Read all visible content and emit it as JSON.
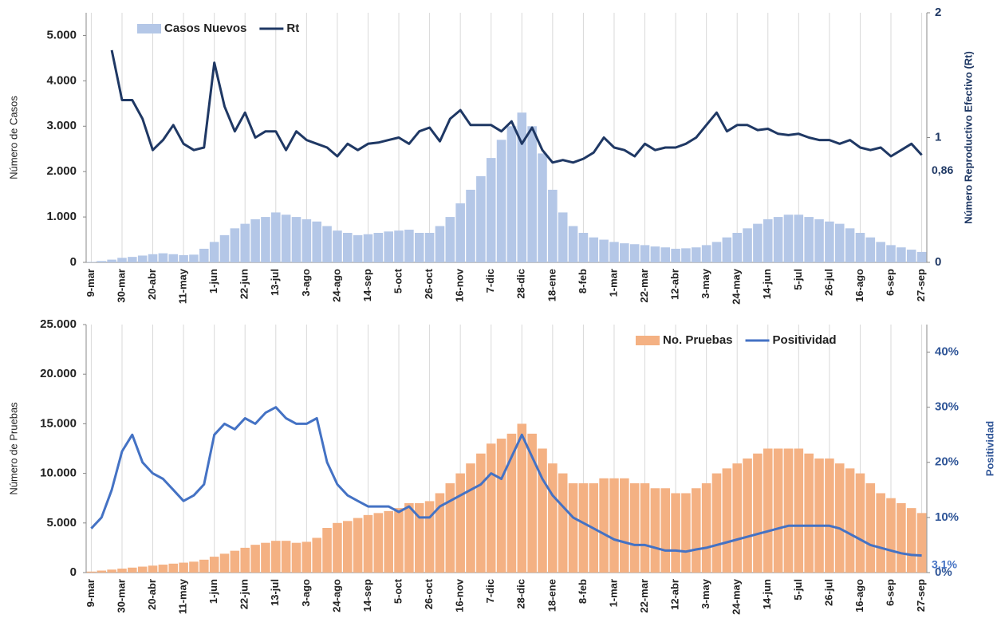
{
  "chart_data": [
    {
      "type": "combo",
      "y_label": "Número de Casos",
      "y2_label": "Número Reproductivo Efectivo (Rt)",
      "legend": "upper left",
      "grid": "x",
      "categories": [
        "9-mar",
        null,
        null,
        "30-mar",
        null,
        null,
        "20-abr",
        null,
        null,
        "11-may",
        null,
        null,
        "1-jun",
        null,
        null,
        "22-jun",
        null,
        null,
        "13-jul",
        null,
        null,
        "3-ago",
        null,
        null,
        "24-ago",
        null,
        null,
        "14-sep",
        null,
        null,
        "5-oct",
        null,
        null,
        "26-oct",
        null,
        null,
        "16-nov",
        null,
        null,
        "7-dic",
        null,
        null,
        "28-dic",
        null,
        null,
        "18-ene",
        null,
        null,
        "8-feb",
        null,
        null,
        "1-mar",
        null,
        null,
        "22-mar",
        null,
        null,
        "12-abr",
        null,
        null,
        "3-may",
        null,
        null,
        "24-may",
        null,
        null,
        "14-jun",
        null,
        null,
        "5-jul",
        null,
        null,
        "26-jul",
        null,
        null,
        "16-ago",
        null,
        null,
        "6-sep",
        null,
        null,
        "27-sep"
      ],
      "ylim": [
        0,
        5500
      ],
      "yticks": [
        0,
        {
          "value": 1000,
          "label": "1.000"
        },
        {
          "value": 2000,
          "label": "2.000"
        },
        {
          "value": 3000,
          "label": "3.000"
        },
        {
          "value": 4000,
          "label": "4.000"
        },
        {
          "value": 5000,
          "label": "5.000"
        }
      ],
      "y2lim": [
        0,
        2
      ],
      "y2ticks": [
        0,
        1,
        2
      ],
      "y2color": "#1f3864",
      "series": [
        {
          "name": "Casos Nuevos",
          "type": "bar",
          "color": "#b4c7e7",
          "values": [
            10,
            30,
            60,
            100,
            120,
            150,
            180,
            200,
            180,
            160,
            170,
            300,
            450,
            600,
            750,
            850,
            950,
            1000,
            1100,
            1050,
            1000,
            950,
            900,
            800,
            700,
            650,
            600,
            620,
            650,
            680,
            700,
            720,
            650,
            650,
            800,
            1000,
            1300,
            1600,
            1900,
            2300,
            2700,
            3000,
            3300,
            3000,
            2400,
            1600,
            1100,
            800,
            650,
            550,
            500,
            450,
            420,
            400,
            380,
            350,
            330,
            300,
            310,
            330,
            380,
            450,
            550,
            650,
            750,
            850,
            950,
            1000,
            1050,
            1050,
            1000,
            950,
            900,
            850,
            750,
            650,
            550,
            450,
            380,
            330,
            280,
            230
          ]
        },
        {
          "name": "Rt",
          "type": "line",
          "axis": "y2",
          "color": "#1f3864",
          "values": [
            null,
            null,
            1.7,
            1.3,
            1.3,
            1.15,
            0.9,
            0.98,
            1.1,
            0.95,
            0.9,
            0.92,
            1.6,
            1.25,
            1.05,
            1.2,
            1.0,
            1.05,
            1.05,
            0.9,
            1.05,
            0.98,
            0.95,
            0.92,
            0.85,
            0.95,
            0.9,
            0.95,
            0.96,
            0.98,
            1.0,
            0.95,
            1.05,
            1.08,
            0.97,
            1.15,
            1.22,
            1.1,
            1.1,
            1.1,
            1.05,
            1.13,
            0.95,
            1.08,
            0.9,
            0.8,
            0.82,
            0.8,
            0.83,
            0.88,
            1.0,
            0.92,
            0.9,
            0.85,
            0.95,
            0.9,
            0.92,
            0.92,
            0.95,
            1.0,
            1.1,
            1.2,
            1.05,
            1.1,
            1.1,
            1.06,
            1.07,
            1.03,
            1.02,
            1.03,
            1.0,
            0.98,
            0.98,
            0.95,
            0.98,
            0.92,
            0.9,
            0.92,
            0.85,
            0.9,
            0.95,
            0.86
          ],
          "value_labels": [
            null,
            null,
            null,
            null,
            null,
            null,
            null,
            null,
            null,
            null,
            null,
            null,
            null,
            null,
            null,
            null,
            null,
            null,
            null,
            null,
            null,
            null,
            null,
            null,
            null,
            null,
            null,
            null,
            null,
            null,
            null,
            null,
            null,
            null,
            null,
            null,
            null,
            null,
            null,
            null,
            null,
            null,
            null,
            null,
            null,
            null,
            null,
            null,
            null,
            null,
            null,
            null,
            null,
            null,
            null,
            null,
            null,
            null,
            null,
            null,
            null,
            null,
            null,
            null,
            null,
            null,
            null,
            null,
            null,
            null,
            null,
            null,
            null,
            null,
            null,
            null,
            null,
            null,
            null,
            null,
            null,
            "0,86"
          ]
        }
      ]
    },
    {
      "type": "combo",
      "y_label": "Número de Pruebas",
      "y2_label": "Positividad",
      "legend": "upper right",
      "grid": "x",
      "categories": [
        "9-mar",
        null,
        null,
        "30-mar",
        null,
        null,
        "20-abr",
        null,
        null,
        "11-may",
        null,
        null,
        "1-jun",
        null,
        null,
        "22-jun",
        null,
        null,
        "13-jul",
        null,
        null,
        "3-ago",
        null,
        null,
        "24-ago",
        null,
        null,
        "14-sep",
        null,
        null,
        "5-oct",
        null,
        null,
        "26-oct",
        null,
        null,
        "16-nov",
        null,
        null,
        "7-dic",
        null,
        null,
        "28-dic",
        null,
        null,
        "18-ene",
        null,
        null,
        "8-feb",
        null,
        null,
        "1-mar",
        null,
        null,
        "22-mar",
        null,
        null,
        "12-abr",
        null,
        null,
        "3-may",
        null,
        null,
        "24-may",
        null,
        null,
        "14-jun",
        null,
        null,
        "5-jul",
        null,
        null,
        "26-jul",
        null,
        null,
        "16-ago",
        null,
        null,
        "6-sep",
        null,
        null,
        "27-sep"
      ],
      "ylim": [
        0,
        25000
      ],
      "yticks": [
        0,
        {
          "value": 5000,
          "label": "5.000"
        },
        {
          "value": 10000,
          "label": "10.000"
        },
        {
          "value": 15000,
          "label": "15.000"
        },
        {
          "value": 20000,
          "label": "20.000"
        },
        {
          "value": 25000,
          "label": "25.000"
        }
      ],
      "y2lim": [
        0,
        45
      ],
      "y2ticks": [
        {
          "value": 0,
          "label": "0%"
        },
        {
          "value": 10,
          "label": "10%"
        },
        {
          "value": 20,
          "label": "20%"
        },
        {
          "value": 30,
          "label": "30%"
        },
        {
          "value": 40,
          "label": "40%"
        }
      ],
      "y2color": "#2f5597",
      "series": [
        {
          "name": "No. Pruebas",
          "type": "bar",
          "color": "#f4b183",
          "values": [
            100,
            200,
            300,
            400,
            500,
            600,
            700,
            800,
            900,
            1000,
            1100,
            1300,
            1600,
            1900,
            2200,
            2500,
            2800,
            3000,
            3200,
            3200,
            3000,
            3100,
            3500,
            4500,
            5000,
            5200,
            5500,
            5800,
            6000,
            6200,
            6500,
            7000,
            7000,
            7200,
            8000,
            9000,
            10000,
            11000,
            12000,
            13000,
            13500,
            14000,
            15000,
            14000,
            12500,
            11000,
            10000,
            9000,
            9000,
            9000,
            9500,
            9500,
            9500,
            9000,
            9000,
            8500,
            8500,
            8000,
            8000,
            8500,
            9000,
            10000,
            10500,
            11000,
            11500,
            12000,
            12500,
            12500,
            12500,
            12500,
            12000,
            11500,
            11500,
            11000,
            10500,
            10000,
            9000,
            8000,
            7500,
            7000,
            6500,
            6000
          ]
        },
        {
          "name": "Positividad",
          "type": "line",
          "axis": "y2",
          "color": "#4472c4",
          "values": [
            8,
            10,
            15,
            22,
            25,
            20,
            18,
            17,
            15,
            13,
            14,
            16,
            25,
            27,
            26,
            28,
            27,
            29,
            30,
            28,
            27,
            27,
            28,
            20,
            16,
            14,
            13,
            12,
            12,
            12,
            11,
            12,
            10,
            10,
            12,
            13,
            14,
            15,
            16,
            18,
            17,
            21,
            25,
            21,
            17,
            14,
            12,
            10,
            9,
            8,
            7,
            6,
            5.5,
            5,
            5,
            4.5,
            4,
            4,
            3.8,
            4.2,
            4.5,
            5,
            5.5,
            6,
            6.5,
            7,
            7.5,
            8,
            8.5,
            8.5,
            8.5,
            8.5,
            8.5,
            8,
            7,
            6,
            5,
            4.5,
            4,
            3.5,
            3.2,
            3.1
          ],
          "value_labels": [
            null,
            null,
            null,
            null,
            null,
            null,
            null,
            null,
            null,
            null,
            null,
            null,
            null,
            null,
            null,
            null,
            null,
            null,
            null,
            null,
            null,
            null,
            null,
            null,
            null,
            null,
            null,
            null,
            null,
            null,
            null,
            null,
            null,
            null,
            null,
            null,
            null,
            null,
            null,
            null,
            null,
            null,
            null,
            null,
            null,
            null,
            null,
            null,
            null,
            null,
            null,
            null,
            null,
            null,
            null,
            null,
            null,
            null,
            null,
            null,
            null,
            null,
            null,
            null,
            null,
            null,
            null,
            null,
            null,
            null,
            null,
            null,
            null,
            null,
            null,
            null,
            null,
            null,
            null,
            null,
            null,
            "3,1%"
          ]
        }
      ]
    }
  ]
}
